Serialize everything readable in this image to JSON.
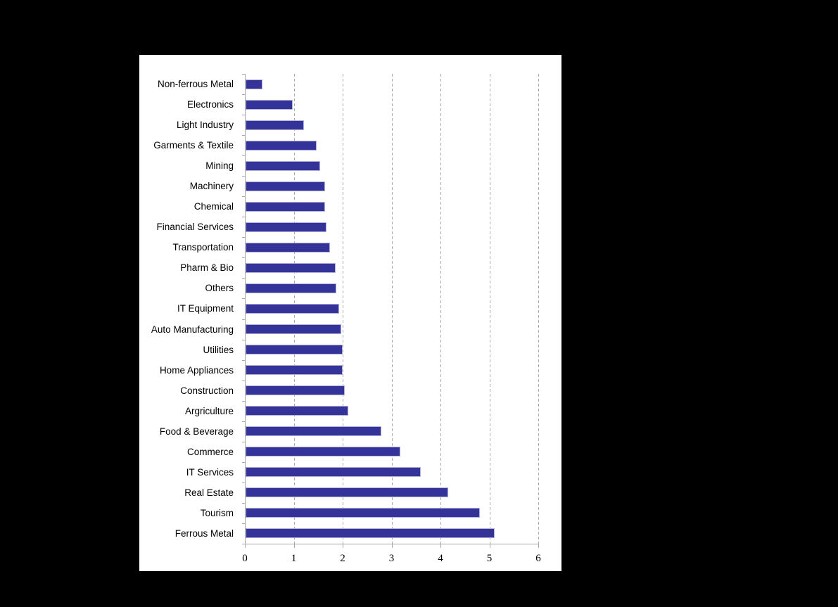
{
  "chart_data": {
    "type": "bar",
    "orientation": "horizontal",
    "title": "",
    "categories": [
      "Non-ferrous Metal",
      "Electronics",
      "Light Industry",
      "Garments & Textile",
      "Mining",
      "Machinery",
      "Chemical",
      "Financial Services",
      "Transportation",
      "Pharm & Bio",
      "Others",
      "IT Equipment",
      "Auto Manufacturing",
      "Utilities",
      "Home Appliances",
      "Construction",
      "Argriculture",
      "Food & Beverage",
      "Commerce",
      "IT Services",
      "Real Estate",
      "Tourism",
      "Ferrous Metal"
    ],
    "values": [
      0.34,
      0.96,
      1.2,
      1.45,
      1.52,
      1.62,
      1.62,
      1.66,
      1.73,
      1.84,
      1.86,
      1.91,
      1.95,
      1.99,
      1.98,
      2.03,
      2.1,
      2.77,
      3.17,
      3.58,
      4.15,
      4.79,
      5.1
    ],
    "xlabel": "",
    "ylabel": "",
    "xlim": [
      0,
      6
    ],
    "x_ticks": [
      0,
      1,
      2,
      3,
      4,
      5,
      6
    ],
    "grid": "vertical dashed gridlines at x = 1..6",
    "legend": "none",
    "colors": {
      "page_bg": "#000000",
      "plot_bg": "#ffffff",
      "bar_fill": "#333399",
      "bar_edge": "#b2b2d8",
      "gridline": "#ababab",
      "axis": "#a6a6a6",
      "text": "#000000"
    }
  }
}
